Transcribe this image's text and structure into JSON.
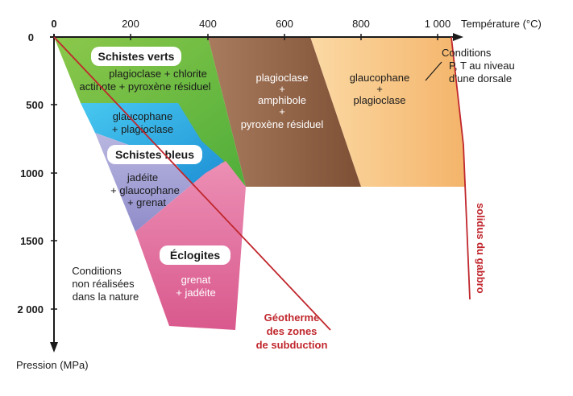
{
  "axes": {
    "x_title": "Température (°C)",
    "y_title": "Pression (MPa)",
    "x_ticks": [
      "0",
      "200",
      "400",
      "600",
      "800",
      "1 000"
    ],
    "y_ticks": [
      "0",
      "500",
      "1000",
      "1500",
      "2 000"
    ]
  },
  "zones": {
    "schistes_verts": {
      "title": "Schistes verts",
      "line1": "plagioclase + chlorite",
      "line2": "actinote + pyroxène résiduel",
      "color": "#7dc242"
    },
    "brown": {
      "line1": "plagioclase",
      "line2": "+",
      "line3": "amphibole",
      "line4": "+",
      "line5": "pyroxène résiduel",
      "color": "#8b5a3c"
    },
    "orange": {
      "line1": "glaucophane",
      "line2": "+",
      "line3": "plagioclase",
      "color": "#f7c886"
    },
    "cyan": {
      "line1": "glaucophane",
      "line2": "+ plagioclase",
      "color": "#2eb8e6"
    },
    "schistes_bleus": {
      "title": "Schistes bleus",
      "line1": "jadéite",
      "line2": "+ glaucophane",
      "line3": "+ grenat",
      "color": "#a6a3d6"
    },
    "eclogites": {
      "title": "Éclogites",
      "line1": "grenat",
      "line2": "+ jadéite",
      "color": "#e377a2"
    }
  },
  "annotations": {
    "dorsale": {
      "line1": "Conditions",
      "line2": "P, T au niveau",
      "line3": "d’une dorsale"
    },
    "non_realisees": {
      "line1": "Conditions",
      "line2": "non réalisées",
      "line3": "dans la nature"
    },
    "geotherme": {
      "line1": "Géotherme",
      "line2": "des zones",
      "line3": "de subduction"
    },
    "solidus": "solidus du gabbro"
  },
  "colors": {
    "axis": "#1a1a1a",
    "red_line": "#c0272d"
  }
}
